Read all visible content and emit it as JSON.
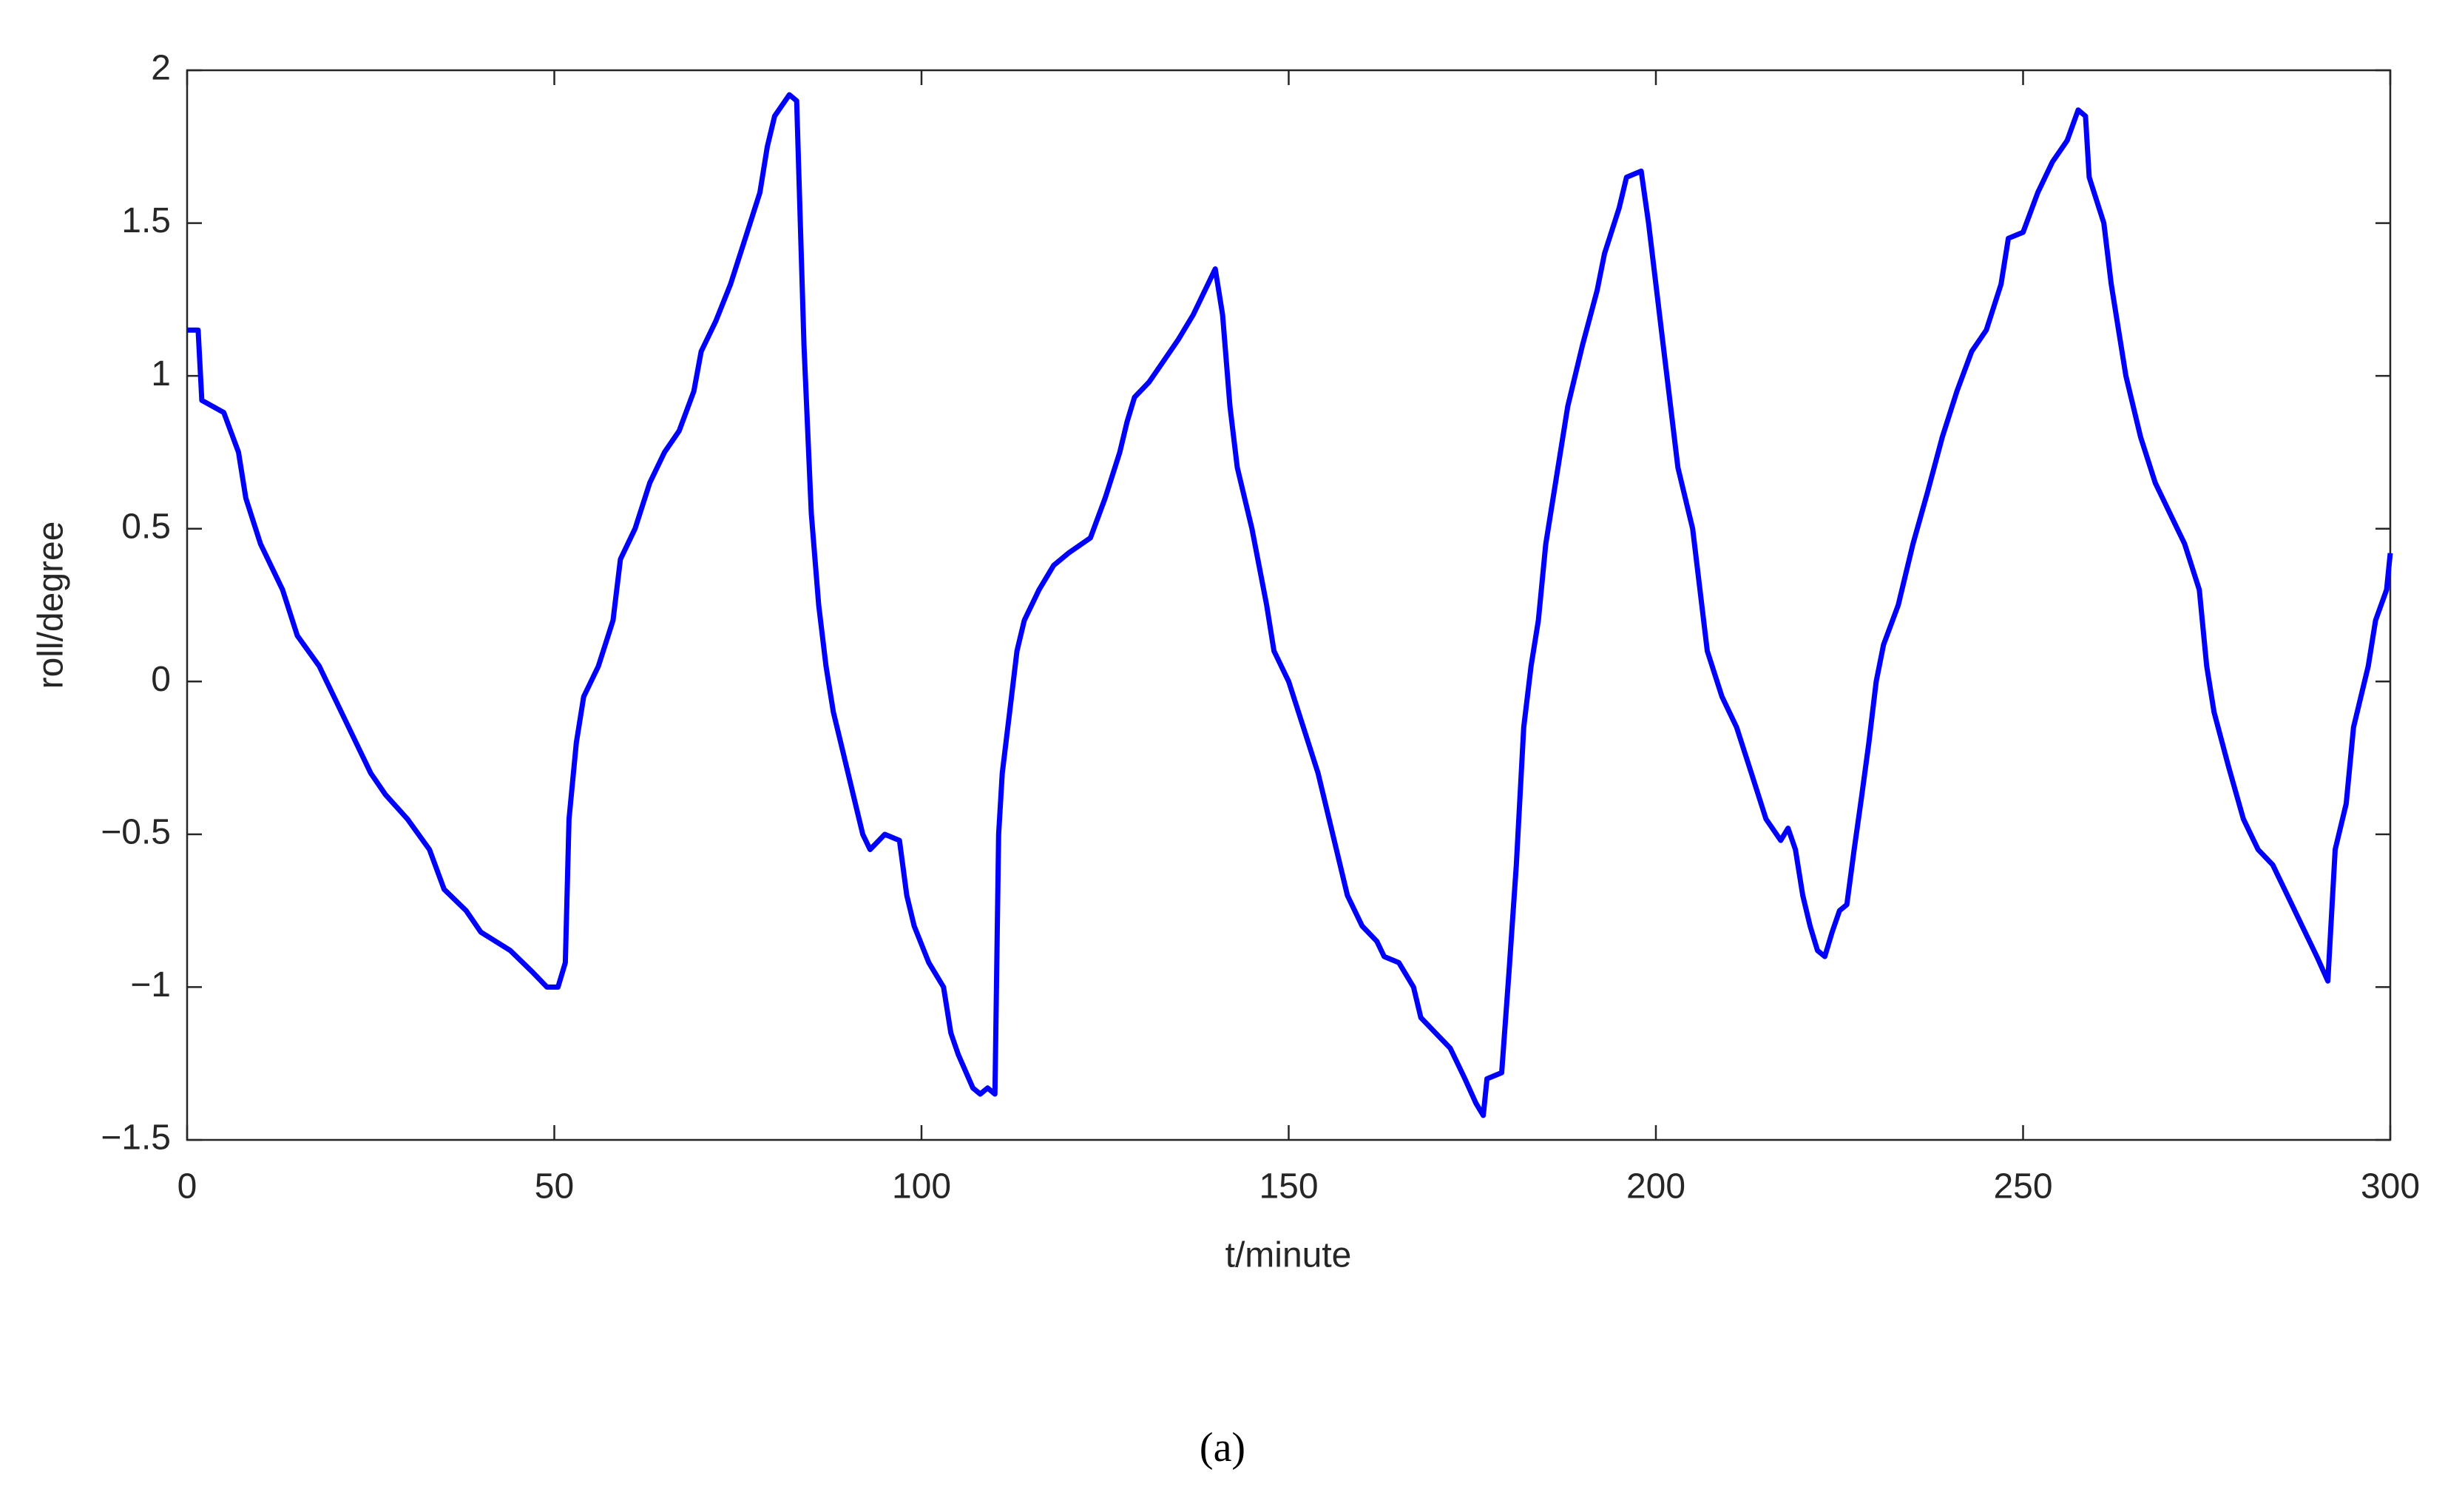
{
  "chart_data": {
    "type": "line",
    "xlabel": "t/minute",
    "ylabel": "roll/degree",
    "caption": "(a)",
    "color": "#0000ff",
    "xlim": [
      0,
      300
    ],
    "ylim": [
      -1.5,
      2
    ],
    "xticks": [
      0,
      50,
      100,
      150,
      200,
      250,
      300
    ],
    "yticks": [
      {
        "value": -1.5,
        "label": "−1.5"
      },
      {
        "value": -1,
        "label": "−1"
      },
      {
        "value": -0.5,
        "label": "−0.5"
      },
      0,
      0.5,
      1,
      1.5,
      2
    ],
    "x": [
      0,
      1.5,
      2,
      5,
      7,
      8,
      10,
      13,
      15,
      18,
      20,
      23,
      25,
      27,
      30,
      33,
      35,
      38,
      40,
      44,
      47,
      49,
      50.5,
      51.5,
      52,
      53,
      54,
      56,
      58,
      59,
      61,
      63,
      65,
      67,
      69,
      70,
      72,
      74,
      76,
      78,
      79,
      80,
      82,
      83,
      84,
      85,
      86,
      87,
      88,
      89,
      90,
      91,
      92,
      93,
      95,
      97,
      98,
      99,
      101,
      103,
      104,
      105,
      107,
      108,
      109,
      110,
      110.5,
      111,
      112,
      113,
      114,
      116,
      118,
      120,
      123,
      125,
      127,
      128,
      129,
      131,
      133,
      135,
      137,
      139,
      140,
      141,
      142,
      143,
      145,
      147,
      148,
      150,
      152,
      154,
      156,
      158,
      160,
      162,
      163,
      165,
      167,
      168,
      170,
      172,
      174,
      175.5,
      176.5,
      177,
      179,
      180,
      181,
      182,
      183,
      184,
      185,
      186,
      188,
      190,
      192,
      193,
      195,
      196,
      198,
      199,
      200,
      201,
      202,
      203,
      205,
      206,
      207,
      209,
      211,
      213,
      215,
      217,
      218,
      219,
      220,
      221,
      222,
      223,
      224,
      225,
      226,
      227,
      228,
      229,
      230,
      231,
      233,
      235,
      237,
      239,
      241,
      243,
      245,
      247,
      248,
      250,
      252,
      254,
      256,
      257.5,
      258.5,
      259,
      261,
      262,
      264,
      266,
      268,
      270,
      272,
      274,
      275,
      276,
      278,
      280,
      282,
      284,
      286,
      288,
      290,
      291.5,
      292.5,
      294,
      295,
      297,
      298,
      299.5,
      300
    ],
    "values": [
      1.15,
      1.15,
      0.92,
      0.88,
      0.75,
      0.6,
      0.45,
      0.3,
      0.15,
      0.05,
      -0.05,
      -0.2,
      -0.3,
      -0.37,
      -0.45,
      -0.55,
      -0.68,
      -0.75,
      -0.82,
      -0.88,
      -0.95,
      -1.0,
      -1.0,
      -0.92,
      -0.45,
      -0.2,
      -0.05,
      0.05,
      0.2,
      0.4,
      0.5,
      0.65,
      0.75,
      0.82,
      0.95,
      1.08,
      1.18,
      1.3,
      1.45,
      1.6,
      1.75,
      1.85,
      1.92,
      1.9,
      1.1,
      0.55,
      0.25,
      0.05,
      -0.1,
      -0.2,
      -0.3,
      -0.4,
      -0.5,
      -0.55,
      -0.5,
      -0.52,
      -0.7,
      -0.8,
      -0.92,
      -1.0,
      -1.15,
      -1.22,
      -1.33,
      -1.35,
      -1.33,
      -1.35,
      -0.5,
      -0.3,
      -0.1,
      0.1,
      0.2,
      0.3,
      0.38,
      0.42,
      0.47,
      0.6,
      0.75,
      0.85,
      0.93,
      0.98,
      1.05,
      1.12,
      1.2,
      1.3,
      1.35,
      1.2,
      0.9,
      0.7,
      0.5,
      0.25,
      0.1,
      0.0,
      -0.15,
      -0.3,
      -0.5,
      -0.7,
      -0.8,
      -0.85,
      -0.9,
      -0.92,
      -1.0,
      -1.1,
      -1.15,
      -1.2,
      -1.3,
      -1.38,
      -1.42,
      -1.3,
      -1.28,
      -0.95,
      -0.6,
      -0.15,
      0.05,
      0.2,
      0.45,
      0.6,
      0.9,
      1.1,
      1.28,
      1.4,
      1.55,
      1.65,
      1.67,
      1.5,
      1.3,
      1.1,
      0.9,
      0.7,
      0.5,
      0.3,
      0.1,
      -0.05,
      -0.15,
      -0.3,
      -0.45,
      -0.52,
      -0.48,
      -0.55,
      -0.7,
      -0.8,
      -0.88,
      -0.9,
      -0.82,
      -0.75,
      -0.73,
      -0.55,
      -0.38,
      -0.2,
      0.0,
      0.12,
      0.25,
      0.45,
      0.62,
      0.8,
      0.95,
      1.08,
      1.15,
      1.3,
      1.45,
      1.47,
      1.6,
      1.7,
      1.77,
      1.87,
      1.85,
      1.65,
      1.5,
      1.3,
      1.0,
      0.8,
      0.65,
      0.55,
      0.45,
      0.3,
      0.05,
      -0.1,
      -0.28,
      -0.45,
      -0.55,
      -0.6,
      -0.7,
      -0.8,
      -0.9,
      -0.98,
      -0.55,
      -0.4,
      -0.15,
      0.05,
      0.2,
      0.3,
      0.42
    ]
  }
}
